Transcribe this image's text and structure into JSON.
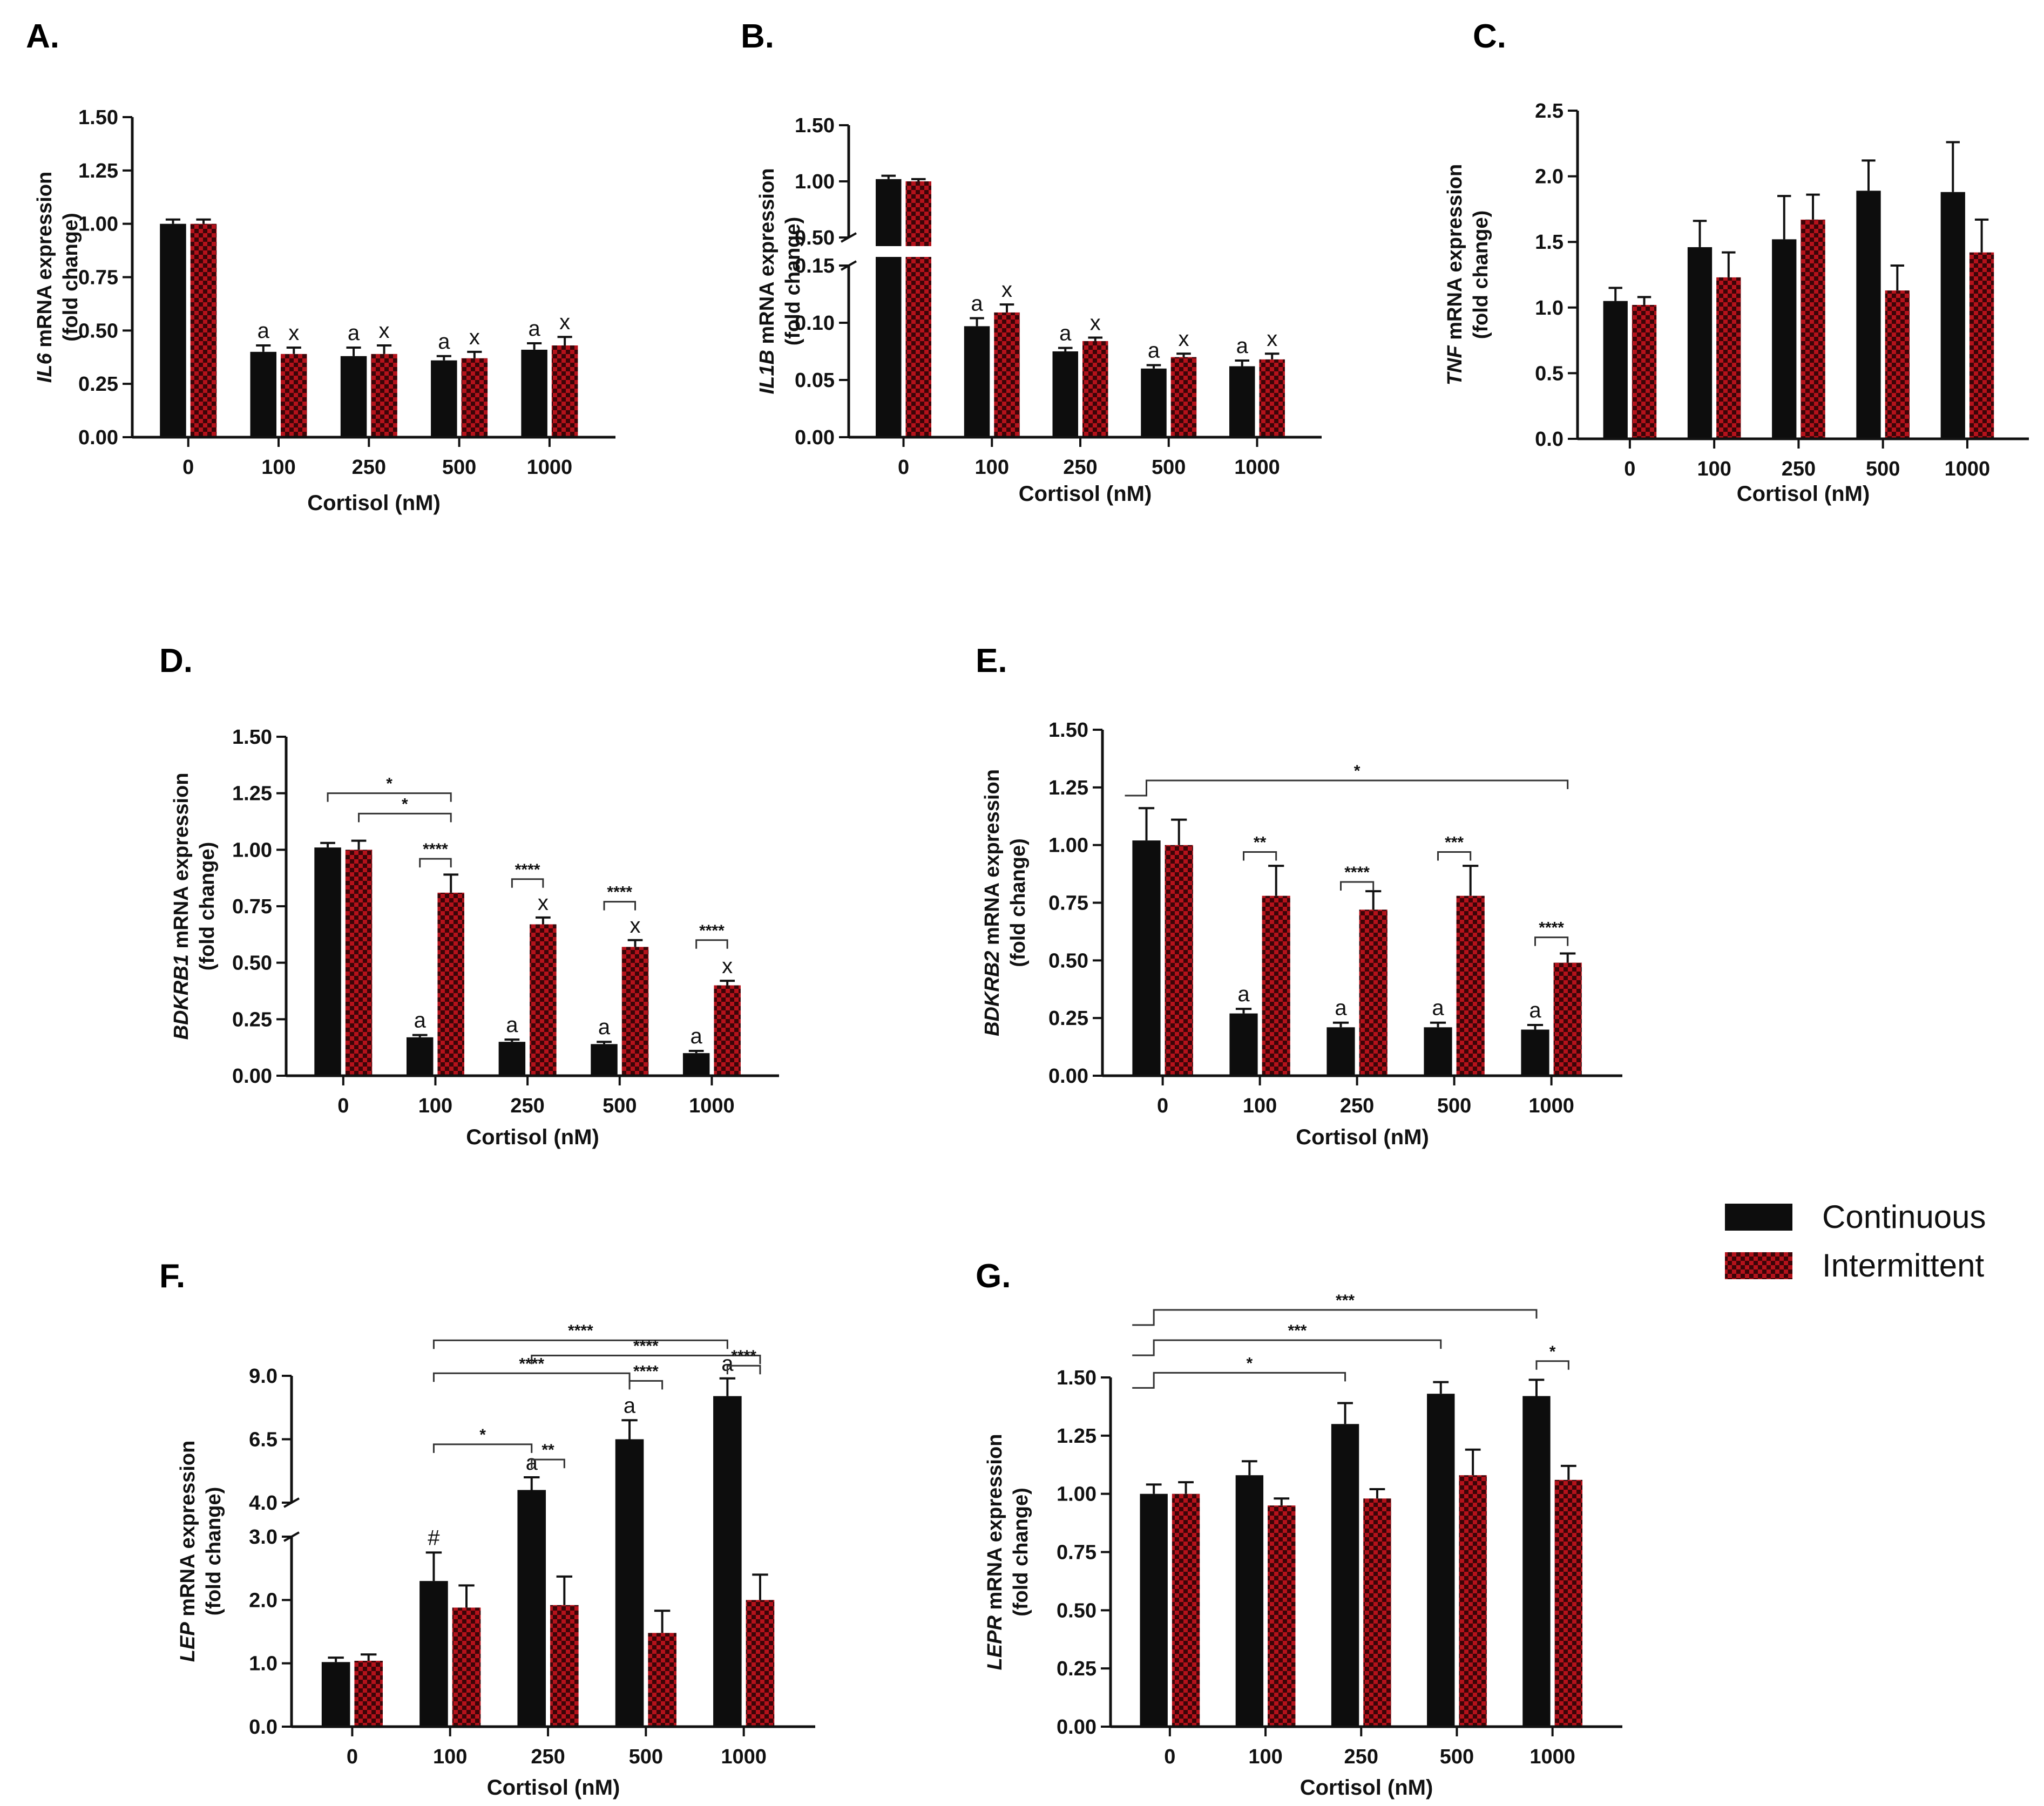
{
  "legend": {
    "position": "right",
    "items": [
      {
        "name": "Continuous",
        "color": "#0d0d0d",
        "pattern": "solid"
      },
      {
        "name": "Intermittent",
        "color": "#b5121b",
        "pattern": "checkered"
      }
    ]
  },
  "chart_data": [
    {
      "panel": "A.",
      "type": "bar",
      "ylabel_gene": "IL6",
      "ylabel_rest": " mRNA expression",
      "ylabel_line2": "(fold change)",
      "xlabel": "Cortisol (nM)",
      "categories": [
        "0",
        "100",
        "250",
        "500",
        "1000"
      ],
      "ylim": [
        0,
        1.5
      ],
      "yticks": [
        "0.00",
        "0.25",
        "0.50",
        "0.75",
        "1.00",
        "1.25",
        "1.50"
      ],
      "series": [
        {
          "name": "Continuous",
          "values": [
            1.0,
            0.4,
            0.38,
            0.36,
            0.41
          ],
          "errors": [
            0.02,
            0.03,
            0.04,
            0.02,
            0.03
          ],
          "letters": [
            "",
            "a",
            "a",
            "a",
            "a"
          ]
        },
        {
          "name": "Intermittent",
          "values": [
            1.0,
            0.39,
            0.39,
            0.37,
            0.43
          ],
          "errors": [
            0.02,
            0.03,
            0.04,
            0.03,
            0.04
          ],
          "letters": [
            "",
            "x",
            "x",
            "x",
            "x"
          ]
        }
      ]
    },
    {
      "panel": "B.",
      "type": "bar",
      "ylabel_gene": "IL1B",
      "ylabel_rest": " mRNA expression",
      "ylabel_line2": "(fold change)",
      "xlabel": "Cortisol (nM)",
      "categories": [
        "0",
        "100",
        "250",
        "500",
        "1000"
      ],
      "axis_break": {
        "lower": [
          0,
          0.15
        ],
        "upper": [
          0.5,
          1.5
        ]
      },
      "yticks": [
        "0.00",
        "0.05",
        "0.10",
        "0.15",
        "0.50",
        "1.00",
        "1.50"
      ],
      "series": [
        {
          "name": "Continuous",
          "values": [
            1.02,
            0.097,
            0.075,
            0.06,
            0.062
          ],
          "errors": [
            0.03,
            0.007,
            0.003,
            0.003,
            0.005
          ],
          "letters": [
            "",
            "a",
            "a",
            "a",
            "a"
          ]
        },
        {
          "name": "Intermittent",
          "values": [
            1.0,
            0.109,
            0.084,
            0.07,
            0.068
          ],
          "errors": [
            0.02,
            0.007,
            0.003,
            0.003,
            0.005
          ],
          "letters": [
            "",
            "x",
            "x",
            "x",
            "x"
          ]
        }
      ]
    },
    {
      "panel": "C.",
      "type": "bar",
      "ylabel_gene": "TNF",
      "ylabel_rest": " mRNA expression",
      "ylabel_line2": "(fold change)",
      "xlabel": "Cortisol (nM)",
      "categories": [
        "0",
        "100",
        "250",
        "500",
        "1000"
      ],
      "ylim": [
        0,
        2.5
      ],
      "yticks": [
        "0.0",
        "0.5",
        "1.0",
        "1.5",
        "2.0",
        "2.5"
      ],
      "series": [
        {
          "name": "Continuous",
          "values": [
            1.05,
            1.46,
            1.52,
            1.89,
            1.88
          ],
          "errors": [
            0.1,
            0.2,
            0.33,
            0.23,
            0.38
          ],
          "letters": [
            "",
            "",
            "",
            "",
            ""
          ]
        },
        {
          "name": "Intermittent",
          "values": [
            1.02,
            1.23,
            1.67,
            1.13,
            1.42
          ],
          "errors": [
            0.06,
            0.19,
            0.19,
            0.19,
            0.25
          ],
          "letters": [
            "",
            "",
            "",
            "",
            ""
          ]
        }
      ]
    },
    {
      "panel": "D.",
      "type": "bar",
      "ylabel_gene": "BDKRB1",
      "ylabel_rest": " mRNA expression",
      "ylabel_line2": "(fold change)",
      "xlabel": "Cortisol (nM)",
      "categories": [
        "0",
        "100",
        "250",
        "500",
        "1000"
      ],
      "ylim": [
        0,
        1.5
      ],
      "yticks": [
        "0.00",
        "0.25",
        "0.50",
        "0.75",
        "1.00",
        "1.25",
        "1.50"
      ],
      "series": [
        {
          "name": "Continuous",
          "values": [
            1.01,
            0.17,
            0.15,
            0.14,
            0.1
          ],
          "errors": [
            0.02,
            0.01,
            0.01,
            0.01,
            0.01
          ],
          "letters": [
            "",
            "a",
            "a",
            "a",
            "a"
          ]
        },
        {
          "name": "Intermittent",
          "values": [
            1.0,
            0.81,
            0.67,
            0.57,
            0.4
          ],
          "errors": [
            0.04,
            0.08,
            0.03,
            0.03,
            0.02
          ],
          "letters": [
            "",
            "",
            "x",
            "x",
            "x"
          ]
        }
      ],
      "brackets": [
        {
          "from": [
            0,
            0
          ],
          "to": [
            1,
            1
          ],
          "y": 1.25,
          "label": "*",
          "lead": 0
        },
        {
          "from": [
            0,
            1
          ],
          "to": [
            1,
            1
          ],
          "y": 1.16,
          "label": "*",
          "lead": 0
        },
        {
          "from": [
            1,
            0
          ],
          "to": [
            1,
            1
          ],
          "y": 0.96,
          "label": "****",
          "lead": 0
        },
        {
          "from": [
            2,
            0
          ],
          "to": [
            2,
            1
          ],
          "y": 0.87,
          "label": "****",
          "lead": 0
        },
        {
          "from": [
            3,
            0
          ],
          "to": [
            3,
            1
          ],
          "y": 0.77,
          "label": "****",
          "lead": 0
        },
        {
          "from": [
            4,
            0
          ],
          "to": [
            4,
            1
          ],
          "y": 0.6,
          "label": "****",
          "lead": 0
        }
      ]
    },
    {
      "panel": "E.",
      "type": "bar",
      "ylabel_gene": "BDKRB2",
      "ylabel_rest": " mRNA expression",
      "ylabel_line2": "(fold change)",
      "xlabel": "Cortisol (nM)",
      "categories": [
        "0",
        "100",
        "250",
        "500",
        "1000"
      ],
      "ylim": [
        0,
        1.5
      ],
      "yticks": [
        "0.00",
        "0.25",
        "0.50",
        "0.75",
        "1.00",
        "1.25",
        "1.50"
      ],
      "series": [
        {
          "name": "Continuous",
          "values": [
            1.02,
            0.27,
            0.21,
            0.21,
            0.2
          ],
          "errors": [
            0.14,
            0.02,
            0.02,
            0.02,
            0.02
          ],
          "letters": [
            "",
            "a",
            "a",
            "a",
            "a"
          ]
        },
        {
          "name": "Intermittent",
          "values": [
            1.0,
            0.78,
            0.72,
            0.78,
            0.49
          ],
          "errors": [
            0.11,
            0.13,
            0.08,
            0.13,
            0.04
          ],
          "letters": [
            "",
            "",
            "",
            "",
            ""
          ]
        }
      ],
      "brackets": [
        {
          "from": [
            0,
            0
          ],
          "to": [
            4,
            1
          ],
          "y": 1.28,
          "label": "*",
          "lead": 1
        },
        {
          "from": [
            1,
            0
          ],
          "to": [
            1,
            1
          ],
          "y": 0.97,
          "label": "**",
          "lead": 0
        },
        {
          "from": [
            2,
            0
          ],
          "to": [
            2,
            1
          ],
          "y": 0.84,
          "label": "****",
          "lead": 0
        },
        {
          "from": [
            3,
            0
          ],
          "to": [
            3,
            1
          ],
          "y": 0.97,
          "label": "***",
          "lead": 0
        },
        {
          "from": [
            4,
            0
          ],
          "to": [
            4,
            1
          ],
          "y": 0.6,
          "label": "****",
          "lead": 0
        }
      ]
    },
    {
      "panel": "F.",
      "type": "bar",
      "ylabel_gene": "LEP",
      "ylabel_rest": " mRNA expression",
      "ylabel_line2": "(fold change)",
      "xlabel": "Cortisol (nM)",
      "categories": [
        "0",
        "100",
        "250",
        "500",
        "1000"
      ],
      "axis_break": {
        "lower": [
          0,
          3
        ],
        "upper": [
          4,
          9
        ]
      },
      "yticks": [
        "0.0",
        "1.0",
        "2.0",
        "3.0",
        "4.0",
        "6.5",
        "9.0"
      ],
      "series": [
        {
          "name": "Continuous",
          "values": [
            1.02,
            2.3,
            4.5,
            6.5,
            8.2
          ],
          "errors": [
            0.07,
            0.45,
            0.5,
            0.75,
            0.7
          ],
          "letters": [
            "",
            "#",
            "a",
            "a",
            "a"
          ]
        },
        {
          "name": "Intermittent",
          "values": [
            1.04,
            1.88,
            1.92,
            1.48,
            2.0
          ],
          "errors": [
            0.1,
            0.35,
            0.45,
            0.35,
            0.4
          ],
          "letters": [
            "",
            "",
            "",
            "",
            ""
          ]
        }
      ],
      "brackets": [
        {
          "from": [
            1,
            0
          ],
          "to": [
            4,
            0
          ],
          "y": 10.4,
          "label": "****",
          "lead": 0
        },
        {
          "from": [
            2,
            0
          ],
          "to": [
            4,
            1
          ],
          "y": 9.8,
          "label": "****",
          "lead": 0
        },
        {
          "from": [
            4,
            0
          ],
          "to": [
            4,
            1
          ],
          "y": 9.4,
          "label": "****",
          "lead": 0
        },
        {
          "from": [
            1,
            0
          ],
          "to": [
            3,
            0
          ],
          "y": 9.1,
          "label": "****",
          "lead": 0
        },
        {
          "from": [
            3,
            0
          ],
          "to": [
            3,
            1
          ],
          "y": 8.8,
          "label": "****",
          "lead": 0
        },
        {
          "from": [
            1,
            0
          ],
          "to": [
            2,
            0
          ],
          "y": 6.3,
          "label": "*",
          "lead": 0
        },
        {
          "from": [
            2,
            0
          ],
          "to": [
            2,
            1
          ],
          "y": 5.7,
          "label": "**",
          "lead": 0
        }
      ]
    },
    {
      "panel": "G.",
      "type": "bar",
      "ylabel_gene": "LEPR",
      "ylabel_rest": " mRNA expression",
      "ylabel_line2": "(fold change)",
      "xlabel": "Cortisol (nM)",
      "categories": [
        "0",
        "100",
        "250",
        "500",
        "1000"
      ],
      "ylim": [
        0,
        1.5
      ],
      "yticks": [
        "0.00",
        "0.25",
        "0.50",
        "0.75",
        "1.00",
        "1.25",
        "1.50"
      ],
      "series": [
        {
          "name": "Continuous",
          "values": [
            1.0,
            1.08,
            1.3,
            1.43,
            1.42
          ],
          "errors": [
            0.04,
            0.06,
            0.09,
            0.05,
            0.07
          ],
          "letters": [
            "",
            "",
            "",
            "",
            ""
          ]
        },
        {
          "name": "Intermittent",
          "values": [
            1.0,
            0.95,
            0.98,
            1.08,
            1.06
          ],
          "errors": [
            0.05,
            0.03,
            0.04,
            0.11,
            0.06
          ],
          "letters": [
            "",
            "",
            "",
            "",
            ""
          ]
        }
      ],
      "brackets": [
        {
          "from": [
            0,
            0
          ],
          "to": [
            4,
            0
          ],
          "y": 1.79,
          "label": "***",
          "lead": 1
        },
        {
          "from": [
            0,
            0
          ],
          "to": [
            3,
            0
          ],
          "y": 1.66,
          "label": "***",
          "lead": 1
        },
        {
          "from": [
            0,
            0
          ],
          "to": [
            2,
            0
          ],
          "y": 1.52,
          "label": "*",
          "lead": 1
        },
        {
          "from": [
            4,
            0
          ],
          "to": [
            4,
            1
          ],
          "y": 1.57,
          "label": "*",
          "lead": 0
        }
      ]
    }
  ]
}
